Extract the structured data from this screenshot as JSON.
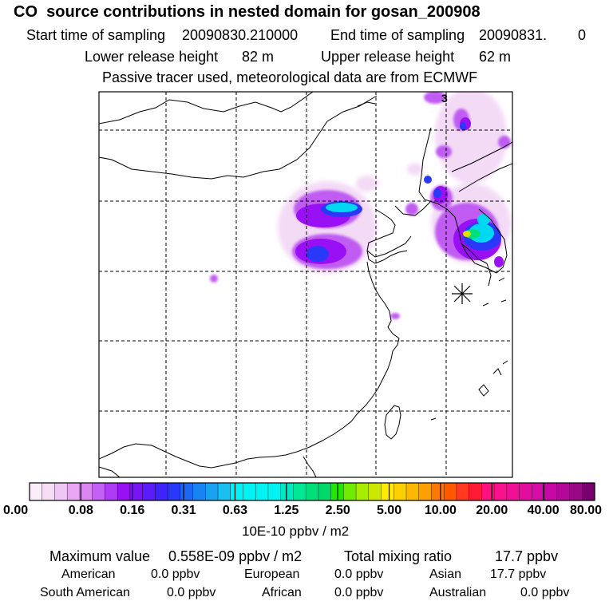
{
  "header": {
    "title": "CO  source contributions in nested domain for gosan_200908",
    "start_label": "Start time of sampling",
    "start_value": "20090830.210000",
    "end_label": "End time of sampling",
    "end_value": "20090831.",
    "end_hour": "0",
    "lower_label": "Lower release height",
    "lower_value": "82 m",
    "upper_label": "Upper release height",
    "upper_value": "62 m",
    "tracer_note": "Passive tracer used, meteorological data are from ECMWF"
  },
  "map": {
    "max_marker": "3",
    "station": "Gosan (receptor, star marker)"
  },
  "colorbar": {
    "tick_labels": [
      "0.00",
      "0.08",
      "0.16",
      "0.31",
      "0.63",
      "1.25",
      "2.50",
      "5.00",
      "10.00",
      "20.00",
      "40.00",
      "80.00"
    ],
    "unit_label": "10E-10 ppbv / m2",
    "colors": [
      "#fbeefb",
      "#f6ddf6",
      "#efc6f4",
      "#e9a6f3",
      "#db87f0",
      "#c460f3",
      "#ad3bf6",
      "#9a10f4",
      "#7a14f6",
      "#5a1cf8",
      "#3e24fa",
      "#2a38f7",
      "#1e66f5",
      "#1884f4",
      "#1aa2f2",
      "#1ac0f0",
      "#00f3f2",
      "#00f3f2",
      "#00f3f2",
      "#00f3f2",
      "#00e8c3",
      "#00e896",
      "#00e07a",
      "#00d86a",
      "#20e800",
      "#70ec00",
      "#a8ee00",
      "#cce800",
      "#ffea00",
      "#ffd000",
      "#ffb800",
      "#ffa000",
      "#ff7800",
      "#ff5a00",
      "#ff3a20",
      "#ff1a36",
      "#ff1280",
      "#fa128c",
      "#f01098",
      "#e40ca0",
      "#d80ca8",
      "#c808a4",
      "#b40898",
      "#9a0886",
      "#7a0070"
    ]
  },
  "stats": {
    "max_label": "Maximum value",
    "max_value": "0.558E-09 ppbv / m2",
    "total_label": "Total mixing ratio",
    "total_value": "17.7 ppbv",
    "sources": [
      {
        "name": "American",
        "value": "0.0 ppbv"
      },
      {
        "name": "European",
        "value": "0.0 ppbv"
      },
      {
        "name": "Asian",
        "value": "17.7 ppbv"
      },
      {
        "name": "South American",
        "value": "0.0 ppbv"
      },
      {
        "name": "African",
        "value": "0.0 ppbv"
      },
      {
        "name": "Australian",
        "value": "0.0 ppbv"
      }
    ]
  }
}
